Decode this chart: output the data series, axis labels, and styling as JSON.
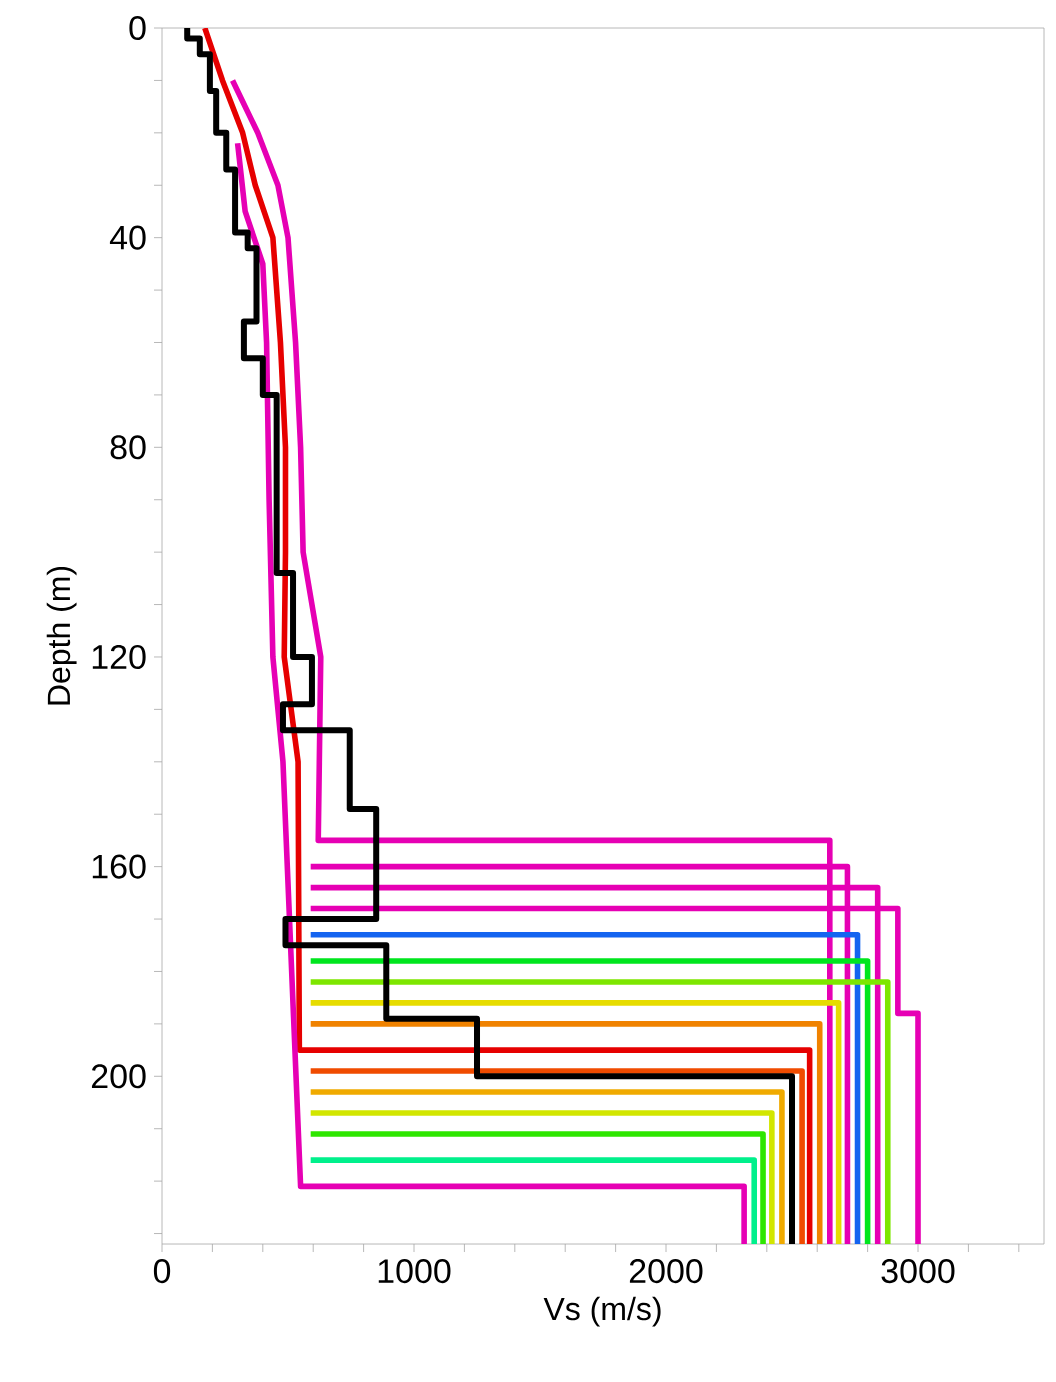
{
  "chart_data": {
    "type": "line",
    "xlabel": "Vs (m/s)",
    "ylabel": "Depth (m)",
    "xlim": [
      0,
      3500
    ],
    "ylim": [
      232,
      0
    ],
    "xticks": [
      0,
      {
        "value": 200,
        "label": null
      },
      {
        "value": 400,
        "label": null
      },
      {
        "value": 600,
        "label": null
      },
      {
        "value": 800,
        "label": null
      },
      1000,
      {
        "value": 1200,
        "label": null
      },
      {
        "value": 1400,
        "label": null
      },
      {
        "value": 1600,
        "label": null
      },
      {
        "value": 1800,
        "label": null
      },
      2000,
      {
        "value": 2200,
        "label": null
      },
      {
        "value": 2400,
        "label": null
      },
      {
        "value": 2600,
        "label": null
      },
      {
        "value": 2800,
        "label": null
      },
      3000,
      {
        "value": 3200,
        "label": null
      },
      {
        "value": 3400,
        "label": null
      }
    ],
    "yticks": [
      0,
      {
        "value": 10,
        "label": null
      },
      {
        "value": 20,
        "label": null
      },
      {
        "value": 30,
        "label": null
      },
      40,
      {
        "value": 50,
        "label": null
      },
      {
        "value": 60,
        "label": null
      },
      {
        "value": 70,
        "label": null
      },
      80,
      {
        "value": 90,
        "label": null
      },
      {
        "value": 100,
        "label": null
      },
      {
        "value": 110,
        "label": null
      },
      120,
      {
        "value": 130,
        "label": null
      },
      {
        "value": 140,
        "label": null
      },
      {
        "value": 150,
        "label": null
      },
      160,
      {
        "value": 170,
        "label": null
      },
      {
        "value": 180,
        "label": null
      },
      {
        "value": 190,
        "label": null
      },
      200,
      {
        "value": 210,
        "label": null
      },
      {
        "value": 220,
        "label": null
      },
      {
        "value": 230,
        "label": null
      }
    ],
    "marker": "none",
    "grid": false,
    "series": [
      {
        "color": "#e600b4",
        "x": [
          280,
          380,
          460,
          500,
          530,
          550,
          560,
          630,
          620,
          2650,
          2650
        ],
        "values": [
          10,
          20,
          30,
          40,
          60,
          80,
          100,
          120,
          155,
          155,
          232
        ]
      },
      {
        "color": "#e600b4",
        "x": [
          590,
          2720,
          2720
        ],
        "values": [
          160,
          160,
          232
        ]
      },
      {
        "color": "#e600b4",
        "x": [
          590,
          2840,
          2840
        ],
        "values": [
          164,
          164,
          232
        ]
      },
      {
        "color": "#e600b4",
        "x": [
          590,
          2920,
          2920,
          3000,
          3000
        ],
        "values": [
          168,
          168,
          188,
          188,
          232
        ]
      },
      {
        "color": "#1464f0",
        "x": [
          590,
          2760,
          2760
        ],
        "values": [
          173,
          173,
          232
        ]
      },
      {
        "color": "#00e61e",
        "x": [
          590,
          2800,
          2800
        ],
        "values": [
          178,
          178,
          232
        ]
      },
      {
        "color": "#7de600",
        "x": [
          590,
          2880,
          2880
        ],
        "values": [
          182,
          182,
          232
        ]
      },
      {
        "color": "#e6dc00",
        "x": [
          590,
          2685,
          2685
        ],
        "values": [
          186,
          186,
          232
        ]
      },
      {
        "color": "#f08200",
        "x": [
          590,
          2610,
          2610
        ],
        "values": [
          190,
          190,
          232
        ]
      },
      {
        "color": "#e60000",
        "x": [
          170,
          240,
          320,
          370,
          440,
          470,
          490,
          490,
          485,
          540,
          545,
          2570,
          2570
        ],
        "values": [
          0,
          10,
          20,
          30,
          40,
          60,
          80,
          100,
          120,
          140,
          195,
          195,
          232
        ]
      },
      {
        "color": "#f04b00",
        "x": [
          590,
          2540,
          2540
        ],
        "values": [
          199,
          199,
          232
        ]
      },
      {
        "color": "#f0aa00",
        "x": [
          590,
          2460,
          2460
        ],
        "values": [
          203,
          203,
          232
        ]
      },
      {
        "color": "#d2e600",
        "x": [
          590,
          2420,
          2420
        ],
        "values": [
          207,
          207,
          232
        ]
      },
      {
        "color": "#2ee600",
        "x": [
          590,
          2385,
          2385
        ],
        "values": [
          211,
          211,
          232
        ]
      },
      {
        "color": "#00f08c",
        "x": [
          590,
          2350,
          2350
        ],
        "values": [
          216,
          216,
          232
        ]
      },
      {
        "color": "#e600b4",
        "x": [
          300,
          330,
          400,
          415,
          425,
          440,
          480,
          550,
          2310,
          2310
        ],
        "values": [
          22,
          35,
          45,
          60,
          90,
          120,
          140,
          221,
          221,
          232
        ]
      },
      {
        "color": "#000000",
        "x": [
          100,
          100,
          150,
          150,
          190,
          190,
          215,
          215,
          255,
          255,
          290,
          290,
          340,
          340,
          375,
          375,
          325,
          325,
          400,
          400,
          455,
          455,
          520,
          520,
          595,
          595,
          480,
          480,
          745,
          745,
          850,
          850,
          490,
          490,
          890,
          890,
          1250,
          1250,
          2500,
          2500
        ],
        "values": [
          0,
          2,
          2,
          5,
          5,
          12,
          12,
          20,
          20,
          27,
          27,
          39,
          39,
          42,
          42,
          56,
          56,
          63,
          63,
          70,
          70,
          104,
          104,
          120,
          120,
          129,
          129,
          134,
          134,
          149,
          149,
          170,
          170,
          175,
          175,
          189,
          189,
          200,
          200,
          232
        ]
      }
    ]
  }
}
